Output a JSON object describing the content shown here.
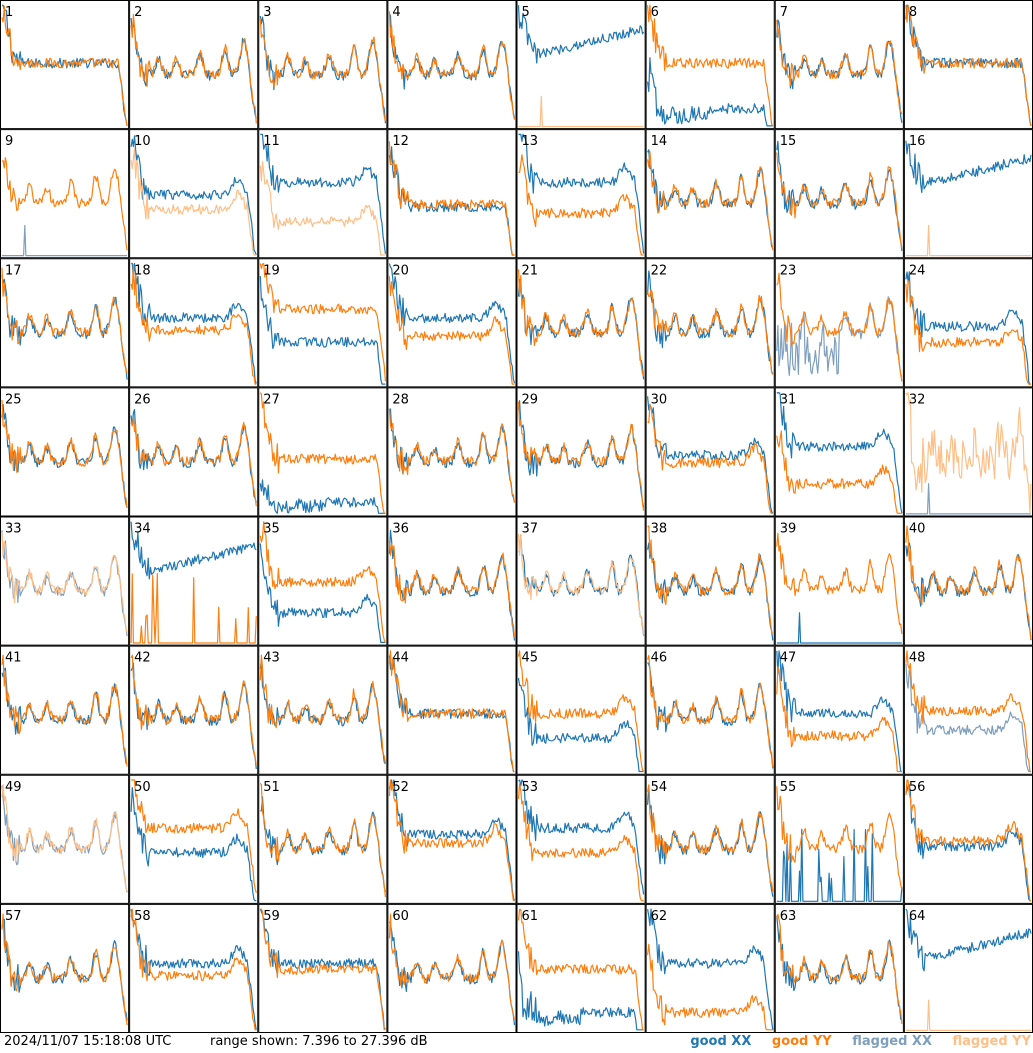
{
  "chart_data": {
    "type": "line",
    "layout": "small-multiples 8x8",
    "panels": [
      {
        "id": "1",
        "xx": "good",
        "yy": "good",
        "shape": "dip",
        "xxLevel": 0.52,
        "yyLevel": 0.52
      },
      {
        "id": "2",
        "xx": "good",
        "yy": "good",
        "shape": "bumpy"
      },
      {
        "id": "3",
        "xx": "good",
        "yy": "good",
        "shape": "bumpy"
      },
      {
        "id": "4",
        "xx": "good",
        "yy": "good",
        "shape": "bumpy"
      },
      {
        "id": "5",
        "xx": "good",
        "yy": "flagged",
        "shape": "rising",
        "yyDead": true
      },
      {
        "id": "6",
        "xx": "good",
        "yy": "good",
        "shape": "dip",
        "xxLevel": 0.15,
        "yyLevel": 0.52,
        "xxNoisy": true
      },
      {
        "id": "7",
        "xx": "good",
        "yy": "good",
        "shape": "bumpy"
      },
      {
        "id": "8",
        "xx": "good",
        "yy": "good",
        "shape": "dip",
        "xxLevel": 0.52,
        "yyLevel": 0.52
      },
      {
        "id": "9",
        "xx": "flagged",
        "yy": "good",
        "shape": "bumpy",
        "xxDead": true
      },
      {
        "id": "10",
        "xx": "good",
        "yy": "flagged",
        "shape": "split",
        "xxLevel": 0.5,
        "yyLevel": 0.38
      },
      {
        "id": "11",
        "xx": "good",
        "yy": "flagged",
        "shape": "split",
        "xxLevel": 0.6,
        "yyLevel": 0.28
      },
      {
        "id": "12",
        "xx": "good",
        "yy": "good",
        "shape": "dip",
        "xxLevel": 0.4,
        "yyLevel": 0.42
      },
      {
        "id": "13",
        "xx": "good",
        "yy": "good",
        "shape": "split",
        "xxLevel": 0.6,
        "yyLevel": 0.35
      },
      {
        "id": "14",
        "xx": "good",
        "yy": "good",
        "shape": "bumpy"
      },
      {
        "id": "15",
        "xx": "good",
        "yy": "good",
        "shape": "bumpy"
      },
      {
        "id": "16",
        "xx": "good",
        "yy": "flagged",
        "shape": "rising",
        "yyDead": true
      },
      {
        "id": "17",
        "xx": "good",
        "yy": "good",
        "shape": "bumpy"
      },
      {
        "id": "18",
        "xx": "good",
        "yy": "good",
        "shape": "split",
        "xxLevel": 0.55,
        "yyLevel": 0.45
      },
      {
        "id": "19",
        "xx": "good",
        "yy": "good",
        "shape": "dip",
        "xxLevel": 0.35,
        "yyLevel": 0.62
      },
      {
        "id": "20",
        "xx": "good",
        "yy": "good",
        "shape": "split",
        "xxLevel": 0.55,
        "yyLevel": 0.4
      },
      {
        "id": "21",
        "xx": "good",
        "yy": "good",
        "shape": "bumpy"
      },
      {
        "id": "22",
        "xx": "good",
        "yy": "good",
        "shape": "bumpy"
      },
      {
        "id": "23",
        "xx": "flagged",
        "yy": "good",
        "shape": "bumpy",
        "xxNoisy": true
      },
      {
        "id": "24",
        "xx": "good",
        "yy": "good",
        "shape": "split",
        "xxLevel": 0.48,
        "yyLevel": 0.35
      },
      {
        "id": "25",
        "xx": "good",
        "yy": "good",
        "shape": "bumpy"
      },
      {
        "id": "26",
        "xx": "good",
        "yy": "good",
        "shape": "bumpy"
      },
      {
        "id": "27",
        "xx": "good",
        "yy": "good",
        "shape": "dip",
        "xxLevel": 0.1,
        "yyLevel": 0.45,
        "xxNoisy": true
      },
      {
        "id": "28",
        "xx": "good",
        "yy": "good",
        "shape": "bumpy"
      },
      {
        "id": "29",
        "xx": "good",
        "yy": "good",
        "shape": "bumpy"
      },
      {
        "id": "30",
        "xx": "good",
        "yy": "good",
        "shape": "split",
        "xxLevel": 0.48,
        "yyLevel": 0.42
      },
      {
        "id": "31",
        "xx": "good",
        "yy": "good",
        "shape": "split",
        "xxLevel": 0.55,
        "yyLevel": 0.25
      },
      {
        "id": "32",
        "xx": "flagged",
        "yy": "flagged",
        "shape": "spiky",
        "xxDead": true
      },
      {
        "id": "33",
        "xx": "flagged",
        "yy": "flagged",
        "shape": "bumpy"
      },
      {
        "id": "34",
        "xx": "good",
        "yy": "good",
        "shape": "rising",
        "yyDead": true,
        "yySpikes": true
      },
      {
        "id": "35",
        "xx": "good",
        "yy": "good",
        "shape": "split",
        "xxLevel": 0.25,
        "yyLevel": 0.5
      },
      {
        "id": "36",
        "xx": "good",
        "yy": "good",
        "shape": "bumpy"
      },
      {
        "id": "37",
        "xx": "good",
        "yy": "flagged",
        "shape": "bumpy"
      },
      {
        "id": "38",
        "xx": "good",
        "yy": "good",
        "shape": "bumpy"
      },
      {
        "id": "39",
        "xx": "good",
        "yy": "good",
        "shape": "bumpy",
        "xxDead": true
      },
      {
        "id": "40",
        "xx": "good",
        "yy": "good",
        "shape": "bumpy"
      },
      {
        "id": "41",
        "xx": "good",
        "yy": "good",
        "shape": "bumpy"
      },
      {
        "id": "42",
        "xx": "good",
        "yy": "good",
        "shape": "bumpy"
      },
      {
        "id": "43",
        "xx": "good",
        "yy": "good",
        "shape": "bumpy"
      },
      {
        "id": "44",
        "xx": "good",
        "yy": "good",
        "shape": "dip",
        "xxLevel": 0.48,
        "yyLevel": 0.48
      },
      {
        "id": "45",
        "xx": "good",
        "yy": "good",
        "shape": "split",
        "xxLevel": 0.28,
        "yyLevel": 0.48
      },
      {
        "id": "46",
        "xx": "good",
        "yy": "good",
        "shape": "bumpy"
      },
      {
        "id": "47",
        "xx": "good",
        "yy": "good",
        "shape": "split",
        "xxLevel": 0.48,
        "yyLevel": 0.3
      },
      {
        "id": "48",
        "xx": "flagged",
        "yy": "good",
        "shape": "split",
        "xxLevel": 0.35,
        "yyLevel": 0.5
      },
      {
        "id": "49",
        "xx": "flagged",
        "yy": "flagged",
        "shape": "bumpy"
      },
      {
        "id": "50",
        "xx": "good",
        "yy": "good",
        "shape": "split",
        "xxLevel": 0.4,
        "yyLevel": 0.6
      },
      {
        "id": "51",
        "xx": "good",
        "yy": "good",
        "shape": "bumpy"
      },
      {
        "id": "52",
        "xx": "good",
        "yy": "good",
        "shape": "split",
        "xxLevel": 0.55,
        "yyLevel": 0.48
      },
      {
        "id": "53",
        "xx": "good",
        "yy": "good",
        "shape": "split",
        "xxLevel": 0.6,
        "yyLevel": 0.4
      },
      {
        "id": "54",
        "xx": "good",
        "yy": "good",
        "shape": "bumpy"
      },
      {
        "id": "55",
        "xx": "good",
        "yy": "good",
        "shape": "bumpy",
        "xxDead": true,
        "xxSpikes": true
      },
      {
        "id": "56",
        "xx": "good",
        "yy": "good",
        "shape": "split",
        "xxLevel": 0.45,
        "yyLevel": 0.5
      },
      {
        "id": "57",
        "xx": "good",
        "yy": "good",
        "shape": "bumpy"
      },
      {
        "id": "58",
        "xx": "good",
        "yy": "good",
        "shape": "split",
        "xxLevel": 0.55,
        "yyLevel": 0.45
      },
      {
        "id": "59",
        "xx": "good",
        "yy": "good",
        "shape": "dip",
        "xxLevel": 0.55,
        "yyLevel": 0.5
      },
      {
        "id": "60",
        "xx": "good",
        "yy": "good",
        "shape": "bumpy"
      },
      {
        "id": "61",
        "xx": "good",
        "yy": "good",
        "shape": "dip",
        "xxLevel": 0.15,
        "yyLevel": 0.5,
        "xxNoisy": true
      },
      {
        "id": "62",
        "xx": "good",
        "yy": "good",
        "shape": "split",
        "xxLevel": 0.55,
        "yyLevel": 0.15
      },
      {
        "id": "63",
        "xx": "good",
        "yy": "good",
        "shape": "bumpy"
      },
      {
        "id": "64",
        "xx": "good",
        "yy": "flagged",
        "shape": "rising",
        "yyDead": true
      }
    ],
    "legend": [
      {
        "label": "good XX",
        "color": "#1f77b4"
      },
      {
        "label": "good YY",
        "color": "#ff7f0e"
      },
      {
        "label": "flagged XX",
        "color": "#7f9fbf"
      },
      {
        "label": "flagged YY",
        "color": "#ffbf87"
      }
    ]
  },
  "footer": {
    "timestamp": "2024/11/07 15:18:08 UTC",
    "range": "range shown: 7.396 to 27.396 dB"
  },
  "colors": {
    "good_xx": "#1f77b4",
    "good_yy": "#ff7f0e",
    "flagged_xx": "#7f9fbf",
    "flagged_yy": "#ffbf87"
  }
}
